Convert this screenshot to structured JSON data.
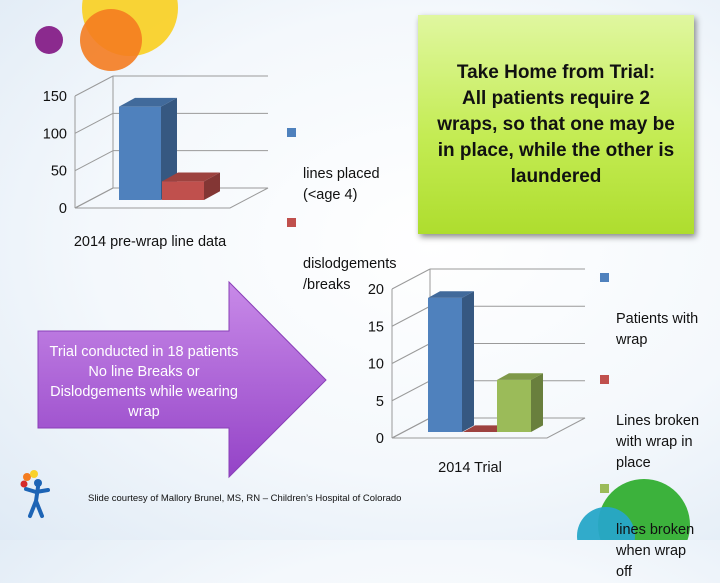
{
  "takeaway": {
    "text": "Take Home from Trial:\nAll patients require 2 wraps, so that one may be in place, while the other is laundered"
  },
  "trial_note": {
    "text": "Trial conducted in 18 patients\nNo line Breaks or Dislodgements while wearing wrap"
  },
  "footer": {
    "credit": "Slide courtesy of Mallory Brunel, MS, RN – Children’s Hospital of Colorado"
  },
  "colors": {
    "blue": "#4f81bd",
    "red": "#c0504d",
    "green": "#9bbb59",
    "panel_green": "#c4ec54",
    "arrow_purple": "#a455d4"
  },
  "icons": [
    "logo-icon"
  ],
  "chart_data": [
    {
      "type": "bar",
      "categories": [
        "2014 pre-wrap line data"
      ],
      "series": [
        {
          "name": "lines placed\n(<age 4)",
          "values": [
            125
          ]
        },
        {
          "name": "dislodgements\n/breaks",
          "values": [
            25
          ]
        }
      ],
      "ylim": [
        0,
        150
      ],
      "yticks": [
        "0",
        "50",
        "100",
        "150"
      ],
      "grid": true,
      "legend": "right"
    },
    {
      "type": "bar",
      "categories": [
        "2014 Trial"
      ],
      "series": [
        {
          "name": "Patients with\nwrap",
          "values": [
            18
          ]
        },
        {
          "name": "Lines broken\nwith wrap in\nplace",
          "values": [
            0
          ]
        },
        {
          "name": "lines broken\nwhen wrap\noff",
          "values": [
            7
          ]
        }
      ],
      "ylim": [
        0,
        20
      ],
      "yticks": [
        "0",
        "5",
        "10",
        "15",
        "20"
      ],
      "grid": true,
      "legend": "right"
    }
  ]
}
